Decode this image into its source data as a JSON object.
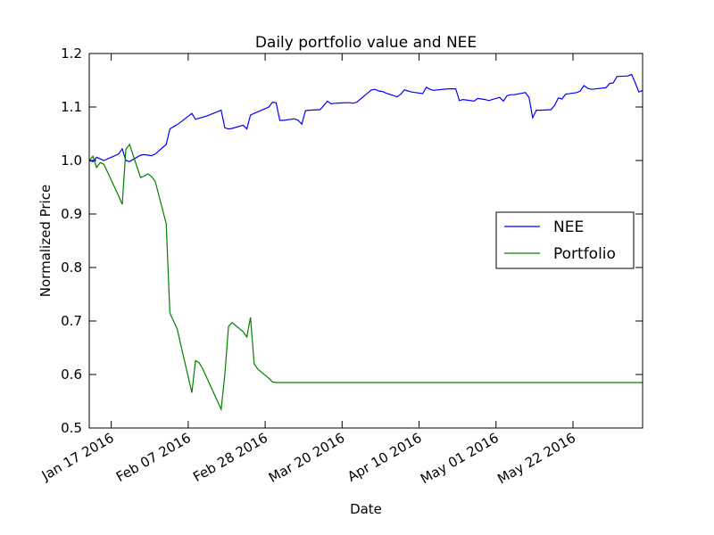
{
  "chart_data": {
    "type": "line",
    "title": "Daily portfolio value and NEE",
    "xlabel": "Date",
    "ylabel": "Normalized Price",
    "ylim": [
      0.5,
      1.2
    ],
    "xlim": [
      "2016-01-11",
      "2016-06-10"
    ],
    "yticks": [
      0.5,
      0.6,
      0.7,
      0.8,
      0.9,
      1.0,
      1.1,
      1.2
    ],
    "xticks": [
      {
        "date": "2016-01-17",
        "label": "Jan 17 2016"
      },
      {
        "date": "2016-02-07",
        "label": "Feb 07 2016"
      },
      {
        "date": "2016-02-28",
        "label": "Feb 28 2016"
      },
      {
        "date": "2016-03-20",
        "label": "Mar 20 2016"
      },
      {
        "date": "2016-04-10",
        "label": "Apr 10 2016"
      },
      {
        "date": "2016-05-01",
        "label": "May 01 2016"
      },
      {
        "date": "2016-05-22",
        "label": "May 22 2016"
      }
    ],
    "grid": false,
    "legend_position": "center-right",
    "series": [
      {
        "name": "NEE",
        "color": "#0000ff",
        "points": [
          [
            "2016-01-11",
            1.0
          ],
          [
            "2016-01-12",
            0.998
          ],
          [
            "2016-01-13",
            1.006
          ],
          [
            "2016-01-14",
            1.003
          ],
          [
            "2016-01-15",
            1.0
          ],
          [
            "2016-01-19",
            1.012
          ],
          [
            "2016-01-20",
            1.022
          ],
          [
            "2016-01-21",
            1.0
          ],
          [
            "2016-01-22",
            0.998
          ],
          [
            "2016-01-25",
            1.01
          ],
          [
            "2016-01-26",
            1.011
          ],
          [
            "2016-01-27",
            1.01
          ],
          [
            "2016-01-28",
            1.009
          ],
          [
            "2016-01-29",
            1.012
          ],
          [
            "2016-02-01",
            1.03
          ],
          [
            "2016-02-02",
            1.059
          ],
          [
            "2016-02-03",
            1.063
          ],
          [
            "2016-02-04",
            1.067
          ],
          [
            "2016-02-05",
            1.072
          ],
          [
            "2016-02-08",
            1.088
          ],
          [
            "2016-02-09",
            1.077
          ],
          [
            "2016-02-10",
            1.079
          ],
          [
            "2016-02-11",
            1.081
          ],
          [
            "2016-02-12",
            1.083
          ],
          [
            "2016-02-16",
            1.094
          ],
          [
            "2016-02-17",
            1.061
          ],
          [
            "2016-02-18",
            1.059
          ],
          [
            "2016-02-19",
            1.06
          ],
          [
            "2016-02-22",
            1.066
          ],
          [
            "2016-02-23",
            1.059
          ],
          [
            "2016-02-24",
            1.085
          ],
          [
            "2016-02-25",
            1.088
          ],
          [
            "2016-02-26",
            1.091
          ],
          [
            "2016-02-29",
            1.1
          ],
          [
            "2016-03-01",
            1.109
          ],
          [
            "2016-03-02",
            1.108
          ],
          [
            "2016-03-03",
            1.075
          ],
          [
            "2016-03-04",
            1.075
          ],
          [
            "2016-03-07",
            1.078
          ],
          [
            "2016-03-08",
            1.075
          ],
          [
            "2016-03-09",
            1.068
          ],
          [
            "2016-03-10",
            1.093
          ],
          [
            "2016-03-11",
            1.094
          ],
          [
            "2016-03-14",
            1.095
          ],
          [
            "2016-03-15",
            1.103
          ],
          [
            "2016-03-16",
            1.111
          ],
          [
            "2016-03-17",
            1.106
          ],
          [
            "2016-03-18",
            1.107
          ],
          [
            "2016-03-21",
            1.108
          ],
          [
            "2016-03-22",
            1.108
          ],
          [
            "2016-03-23",
            1.107
          ],
          [
            "2016-03-24",
            1.109
          ],
          [
            "2016-03-28",
            1.132
          ],
          [
            "2016-03-29",
            1.133
          ],
          [
            "2016-03-30",
            1.13
          ],
          [
            "2016-03-31",
            1.129
          ],
          [
            "2016-04-01",
            1.126
          ],
          [
            "2016-04-04",
            1.119
          ],
          [
            "2016-04-05",
            1.124
          ],
          [
            "2016-04-06",
            1.132
          ],
          [
            "2016-04-07",
            1.13
          ],
          [
            "2016-04-08",
            1.128
          ],
          [
            "2016-04-11",
            1.125
          ],
          [
            "2016-04-12",
            1.137
          ],
          [
            "2016-04-13",
            1.133
          ],
          [
            "2016-04-14",
            1.131
          ],
          [
            "2016-04-15",
            1.132
          ],
          [
            "2016-04-18",
            1.134
          ],
          [
            "2016-04-19",
            1.134
          ],
          [
            "2016-04-20",
            1.134
          ],
          [
            "2016-04-21",
            1.112
          ],
          [
            "2016-04-22",
            1.114
          ],
          [
            "2016-04-25",
            1.111
          ],
          [
            "2016-04-26",
            1.116
          ],
          [
            "2016-04-27",
            1.115
          ],
          [
            "2016-04-28",
            1.114
          ],
          [
            "2016-04-29",
            1.112
          ],
          [
            "2016-05-02",
            1.118
          ],
          [
            "2016-05-03",
            1.111
          ],
          [
            "2016-05-04",
            1.121
          ],
          [
            "2016-05-05",
            1.123
          ],
          [
            "2016-05-06",
            1.123
          ],
          [
            "2016-05-09",
            1.127
          ],
          [
            "2016-05-10",
            1.118
          ],
          [
            "2016-05-11",
            1.08
          ],
          [
            "2016-05-12",
            1.094
          ],
          [
            "2016-05-13",
            1.094
          ],
          [
            "2016-05-16",
            1.095
          ],
          [
            "2016-05-17",
            1.103
          ],
          [
            "2016-05-18",
            1.117
          ],
          [
            "2016-05-19",
            1.115
          ],
          [
            "2016-05-20",
            1.124
          ],
          [
            "2016-05-23",
            1.127
          ],
          [
            "2016-05-24",
            1.13
          ],
          [
            "2016-05-25",
            1.14
          ],
          [
            "2016-05-26",
            1.135
          ],
          [
            "2016-05-27",
            1.133
          ],
          [
            "2016-05-31",
            1.136
          ],
          [
            "2016-06-01",
            1.144
          ],
          [
            "2016-06-02",
            1.145
          ],
          [
            "2016-06-03",
            1.157
          ],
          [
            "2016-06-06",
            1.158
          ],
          [
            "2016-06-07",
            1.161
          ],
          [
            "2016-06-08",
            1.145
          ],
          [
            "2016-06-09",
            1.128
          ],
          [
            "2016-06-10",
            1.131
          ]
        ]
      },
      {
        "name": "Portfolio",
        "color": "#008000",
        "points": [
          [
            "2016-01-11",
            1.0
          ],
          [
            "2016-01-12",
            1.008
          ],
          [
            "2016-01-13",
            0.987
          ],
          [
            "2016-01-14",
            0.996
          ],
          [
            "2016-01-15",
            0.993
          ],
          [
            "2016-01-19",
            0.934
          ],
          [
            "2016-01-20",
            0.918
          ],
          [
            "2016-01-21",
            1.021
          ],
          [
            "2016-01-22",
            1.03
          ],
          [
            "2016-01-25",
            0.968
          ],
          [
            "2016-01-26",
            0.971
          ],
          [
            "2016-01-27",
            0.975
          ],
          [
            "2016-01-28",
            0.97
          ],
          [
            "2016-01-29",
            0.961
          ],
          [
            "2016-02-01",
            0.882
          ],
          [
            "2016-02-02",
            0.715
          ],
          [
            "2016-02-03",
            0.7
          ],
          [
            "2016-02-04",
            0.685
          ],
          [
            "2016-02-05",
            0.655
          ],
          [
            "2016-02-08",
            0.566
          ],
          [
            "2016-02-09",
            0.626
          ],
          [
            "2016-02-10",
            0.622
          ],
          [
            "2016-02-11",
            0.61
          ],
          [
            "2016-02-12",
            0.595
          ],
          [
            "2016-02-16",
            0.535
          ],
          [
            "2016-02-17",
            0.6
          ],
          [
            "2016-02-18",
            0.69
          ],
          [
            "2016-02-19",
            0.697
          ],
          [
            "2016-02-22",
            0.68
          ],
          [
            "2016-02-23",
            0.67
          ],
          [
            "2016-02-24",
            0.707
          ],
          [
            "2016-02-25",
            0.62
          ],
          [
            "2016-02-26",
            0.61
          ],
          [
            "2016-02-29",
            0.593
          ],
          [
            "2016-03-01",
            0.586
          ],
          [
            "2016-03-02",
            0.585
          ],
          [
            "2016-06-10",
            0.585
          ]
        ]
      }
    ]
  }
}
